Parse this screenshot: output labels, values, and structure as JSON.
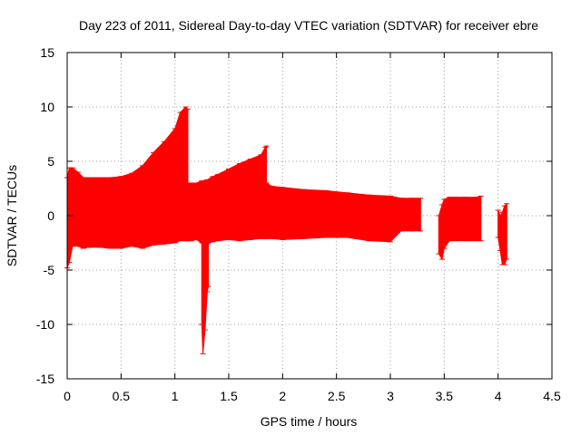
{
  "chart_data": {
    "type": "bar",
    "title": "Day 223 of 2011, Sidereal Day-to-day VTEC variation (SDTVAR) for receiver ebre",
    "xlabel": "GPS time / hours",
    "ylabel": "SDTVAR / TECUs",
    "xlim": [
      0,
      4.5
    ],
    "ylim": [
      -15,
      15
    ],
    "x_ticks": [
      "0",
      "0.5",
      "1",
      "1.5",
      "2",
      "2.5",
      "3",
      "3.5",
      "4",
      "4.5"
    ],
    "y_ticks": [
      "-15",
      "-10",
      "-5",
      "0",
      "5",
      "10",
      "15"
    ],
    "grid": true,
    "series_color": "#ff0000",
    "series": [
      {
        "description": "error-bar envelope (low, high) per GPS time",
        "segments": [
          {
            "x": [
              0.0,
              0.02,
              0.05,
              0.1,
              0.15,
              0.2,
              0.3,
              0.4,
              0.5,
              0.6,
              0.7,
              0.8,
              0.9,
              1.0,
              1.05,
              1.1,
              1.12
            ],
            "low": [
              -4.8,
              -4.3,
              -2.8,
              -2.8,
              -3.0,
              -2.9,
              -2.9,
              -3.0,
              -3.0,
              -2.8,
              -3.0,
              -2.7,
              -2.6,
              -2.5,
              -2.3,
              -2.3,
              -2.3
            ],
            "high": [
              3.5,
              4.4,
              4.4,
              4.0,
              3.5,
              3.5,
              3.5,
              3.5,
              3.6,
              3.9,
              4.6,
              5.8,
              6.8,
              8.0,
              9.5,
              10.0,
              9.8
            ]
          },
          {
            "x": [
              1.12,
              1.15,
              1.2,
              1.25,
              1.3,
              1.35,
              1.4,
              1.5,
              1.6,
              1.7,
              1.8,
              1.84,
              1.85
            ],
            "low": [
              -2.3,
              -2.3,
              -2.2,
              -2.5,
              -2.6,
              -2.4,
              -2.3,
              -2.2,
              -2.3,
              -2.2,
              -2.1,
              -2.1,
              -2.1
            ],
            "high": [
              3.0,
              3.0,
              3.0,
              3.2,
              3.3,
              3.6,
              3.8,
              4.3,
              4.8,
              5.2,
              5.6,
              6.3,
              6.4
            ]
          },
          {
            "x": [
              1.25,
              1.26,
              1.28,
              1.3,
              1.31
            ],
            "low": [
              -10.0,
              -12.7,
              -10.5,
              -7.0,
              -6.5
            ],
            "high": [
              0.0,
              0.0,
              0.0,
              0.0,
              0.0
            ]
          },
          {
            "x": [
              1.85,
              1.9,
              2.0,
              2.2,
              2.4,
              2.6,
              2.8,
              3.0,
              3.1,
              3.2,
              3.28
            ],
            "low": [
              -2.1,
              -2.1,
              -2.2,
              -2.1,
              -2.0,
              -2.0,
              -2.3,
              -2.4,
              -1.4,
              -1.4,
              -1.4
            ],
            "high": [
              3.0,
              2.7,
              2.6,
              2.4,
              2.3,
              2.1,
              1.9,
              1.8,
              1.6,
              1.6,
              1.6
            ]
          },
          {
            "x": [
              3.45,
              3.48,
              3.5,
              3.55,
              3.6,
              3.7,
              3.8,
              3.84
            ],
            "low": [
              -3.5,
              -4.0,
              -3.0,
              -2.3,
              -2.3,
              -2.3,
              -2.3,
              -2.3
            ],
            "high": [
              0.0,
              1.0,
              1.5,
              1.7,
              1.7,
              1.7,
              1.7,
              1.8
            ]
          },
          {
            "x": [
              4.0,
              4.02,
              4.04,
              4.06,
              4.08
            ],
            "low": [
              -2.0,
              -3.2,
              -4.5,
              -4.5,
              -4.0
            ],
            "high": [
              0.5,
              0.0,
              0.3,
              0.9,
              1.1
            ]
          }
        ]
      }
    ]
  }
}
